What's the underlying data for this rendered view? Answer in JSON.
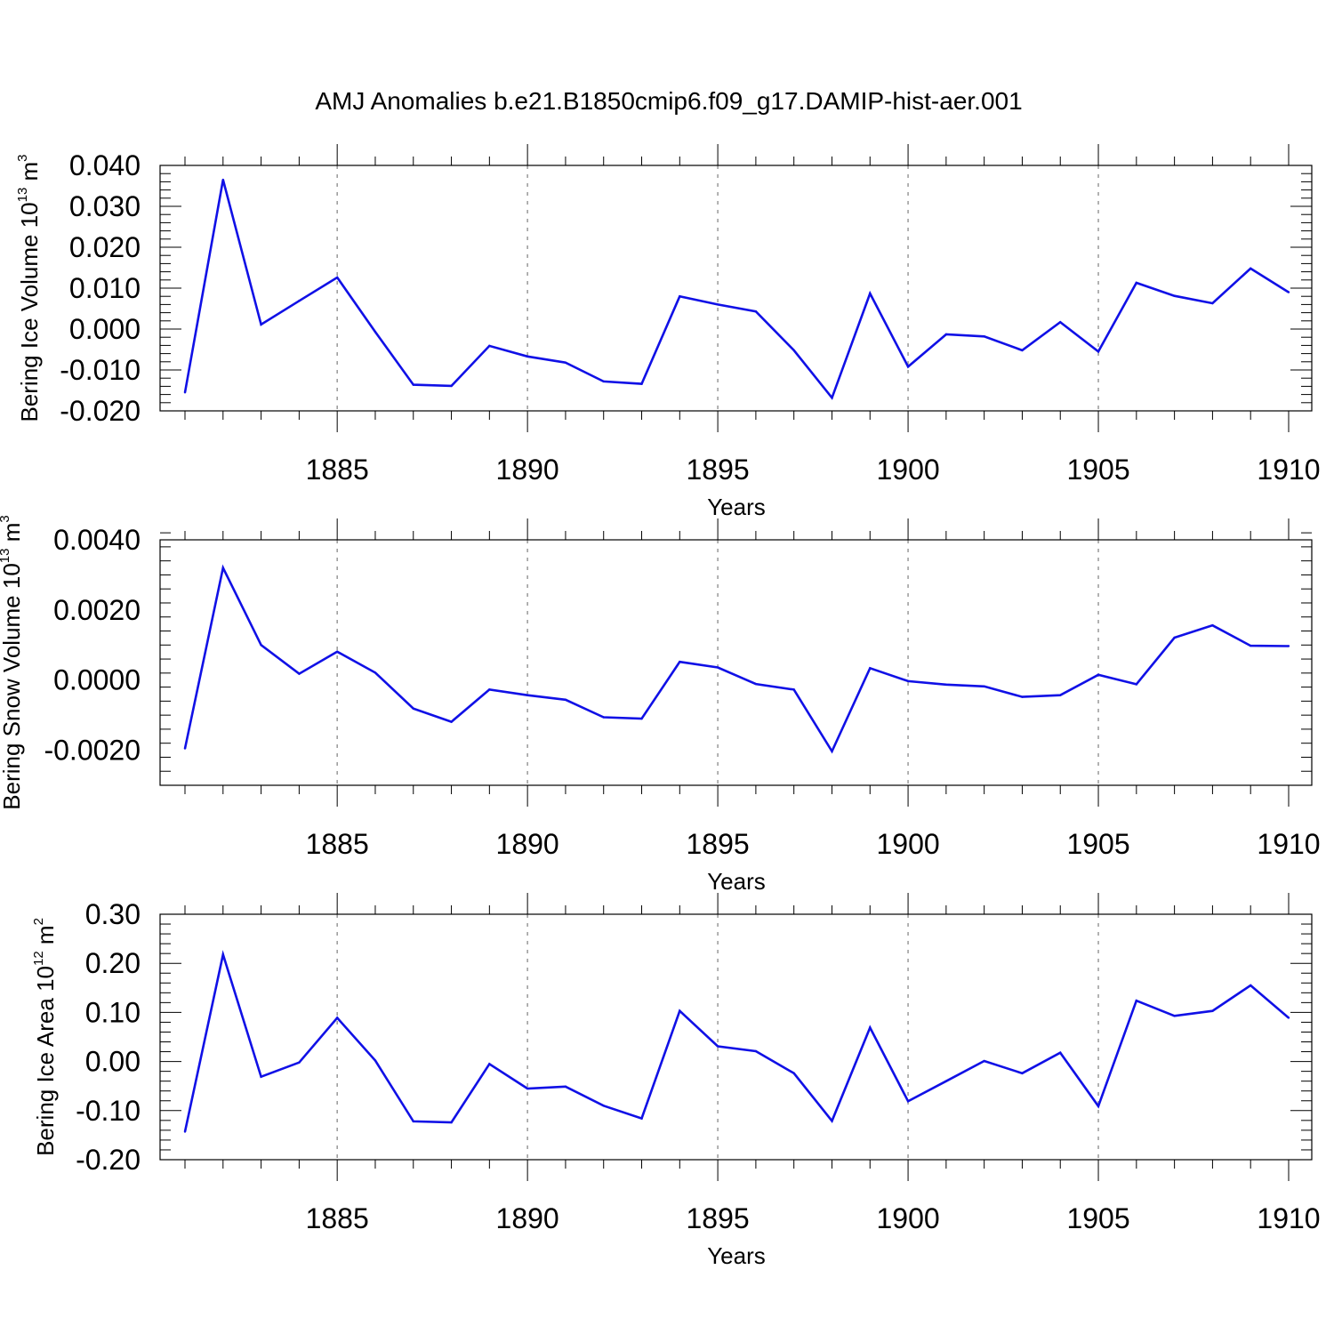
{
  "title": "AMJ Anomalies b.e21.B1850cmip6.f09_g17.DAMIP-hist-aer.001",
  "colors": {
    "line": "#1010e6",
    "axis": "#000000",
    "grid": "#999999"
  },
  "chart_data": [
    {
      "type": "line",
      "ylabel_main": "Bering Ice Volume 10",
      "ylabel_exp": "13",
      "ylabel_unit": " m",
      "ylabel_unit_exp": "3",
      "xlabel": "Years",
      "xlim": [
        1881,
        1910
      ],
      "ylim": [
        -0.02,
        0.04
      ],
      "yticks": [
        {
          "v": 0.04,
          "label": "0.040"
        },
        {
          "v": 0.03,
          "label": "0.030"
        },
        {
          "v": 0.02,
          "label": "0.020"
        },
        {
          "v": 0.01,
          "label": "0.010"
        },
        {
          "v": 0.0,
          "label": "0.000"
        },
        {
          "v": -0.01,
          "label": "-0.010"
        },
        {
          "v": -0.02,
          "label": "-0.020"
        }
      ],
      "xticks": [
        {
          "v": 1885,
          "label": "1885"
        },
        {
          "v": 1890,
          "label": "1890"
        },
        {
          "v": 1895,
          "label": "1895"
        },
        {
          "v": 1900,
          "label": "1900"
        },
        {
          "v": 1905,
          "label": "1905"
        },
        {
          "v": 1910,
          "label": "1910"
        }
      ],
      "x": [
        1881,
        1882,
        1883,
        1884,
        1885,
        1886,
        1887,
        1888,
        1889,
        1890,
        1891,
        1892,
        1893,
        1894,
        1895,
        1896,
        1897,
        1898,
        1899,
        1900,
        1901,
        1902,
        1903,
        1904,
        1905,
        1906,
        1907,
        1908,
        1909,
        1910
      ],
      "values": [
        -0.0155,
        0.0365,
        0.0011,
        0.0069,
        0.0126,
        -0.0007,
        -0.0136,
        -0.0139,
        -0.0041,
        -0.0067,
        -0.0082,
        -0.0128,
        -0.0134,
        0.008,
        0.006,
        0.0043,
        -0.0052,
        -0.0168,
        0.0087,
        -0.0092,
        -0.0013,
        -0.0018,
        -0.0052,
        0.0017,
        -0.0055,
        0.0113,
        0.0081,
        0.0063,
        0.0148,
        0.009
      ]
    },
    {
      "type": "line",
      "ylabel_main": "Bering Snow Volume 10",
      "ylabel_exp": "13",
      "ylabel_unit": " m",
      "ylabel_unit_exp": "3",
      "xlabel": "Years",
      "xlim": [
        1881,
        1910
      ],
      "ylim": [
        -0.003,
        0.004
      ],
      "yticks": [
        {
          "v": 0.004,
          "label": "0.0040"
        },
        {
          "v": 0.002,
          "label": "0.0020"
        },
        {
          "v": 0.0,
          "label": "0.0000"
        },
        {
          "v": -0.002,
          "label": "-0.0020"
        }
      ],
      "xticks": [
        {
          "v": 1885,
          "label": "1885"
        },
        {
          "v": 1890,
          "label": "1890"
        },
        {
          "v": 1895,
          "label": "1895"
        },
        {
          "v": 1900,
          "label": "1900"
        },
        {
          "v": 1905,
          "label": "1905"
        },
        {
          "v": 1910,
          "label": "1910"
        }
      ],
      "x": [
        1881,
        1882,
        1883,
        1884,
        1885,
        1886,
        1887,
        1888,
        1889,
        1890,
        1891,
        1892,
        1893,
        1894,
        1895,
        1896,
        1897,
        1898,
        1899,
        1900,
        1901,
        1902,
        1903,
        1904,
        1905,
        1906,
        1907,
        1908,
        1909,
        1910
      ],
      "values": [
        -0.00195,
        0.0032,
        0.001,
        0.00018,
        0.00081,
        0.00021,
        -0.00081,
        -0.00119,
        -0.00027,
        -0.00043,
        -0.00056,
        -0.00106,
        -0.0011,
        0.00052,
        0.00036,
        -0.00011,
        -0.00027,
        -0.00203,
        0.00034,
        -3e-05,
        -0.00013,
        -0.00018,
        -0.00048,
        -0.00043,
        0.00015,
        -0.00012,
        0.00121,
        0.00156,
        0.00098,
        0.00097
      ]
    },
    {
      "type": "line",
      "ylabel_main": "Bering Ice Area 10",
      "ylabel_exp": "12",
      "ylabel_unit": " m",
      "ylabel_unit_exp": "2",
      "xlabel": "Years",
      "xlim": [
        1881,
        1910
      ],
      "ylim": [
        -0.2,
        0.3
      ],
      "yticks": [
        {
          "v": 0.3,
          "label": "0.30"
        },
        {
          "v": 0.2,
          "label": "0.20"
        },
        {
          "v": 0.1,
          "label": "0.10"
        },
        {
          "v": 0.0,
          "label": "0.00"
        },
        {
          "v": -0.1,
          "label": "-0.10"
        },
        {
          "v": -0.2,
          "label": "-0.20"
        }
      ],
      "xticks": [
        {
          "v": 1885,
          "label": "1885"
        },
        {
          "v": 1890,
          "label": "1890"
        },
        {
          "v": 1895,
          "label": "1895"
        },
        {
          "v": 1900,
          "label": "1900"
        },
        {
          "v": 1905,
          "label": "1905"
        },
        {
          "v": 1910,
          "label": "1910"
        }
      ],
      "x": [
        1881,
        1882,
        1883,
        1884,
        1885,
        1886,
        1887,
        1888,
        1889,
        1890,
        1891,
        1892,
        1893,
        1894,
        1895,
        1896,
        1897,
        1898,
        1899,
        1900,
        1901,
        1902,
        1903,
        1904,
        1905,
        1906,
        1907,
        1908,
        1909,
        1910
      ],
      "values": [
        -0.143,
        0.218,
        -0.031,
        -0.002,
        0.089,
        0.002,
        -0.122,
        -0.124,
        -0.005,
        -0.055,
        -0.051,
        -0.09,
        -0.116,
        0.103,
        0.031,
        0.021,
        -0.024,
        -0.121,
        0.069,
        -0.081,
        -0.04,
        0.001,
        -0.024,
        0.018,
        -0.091,
        0.124,
        0.093,
        0.103,
        0.155,
        0.089
      ]
    }
  ]
}
